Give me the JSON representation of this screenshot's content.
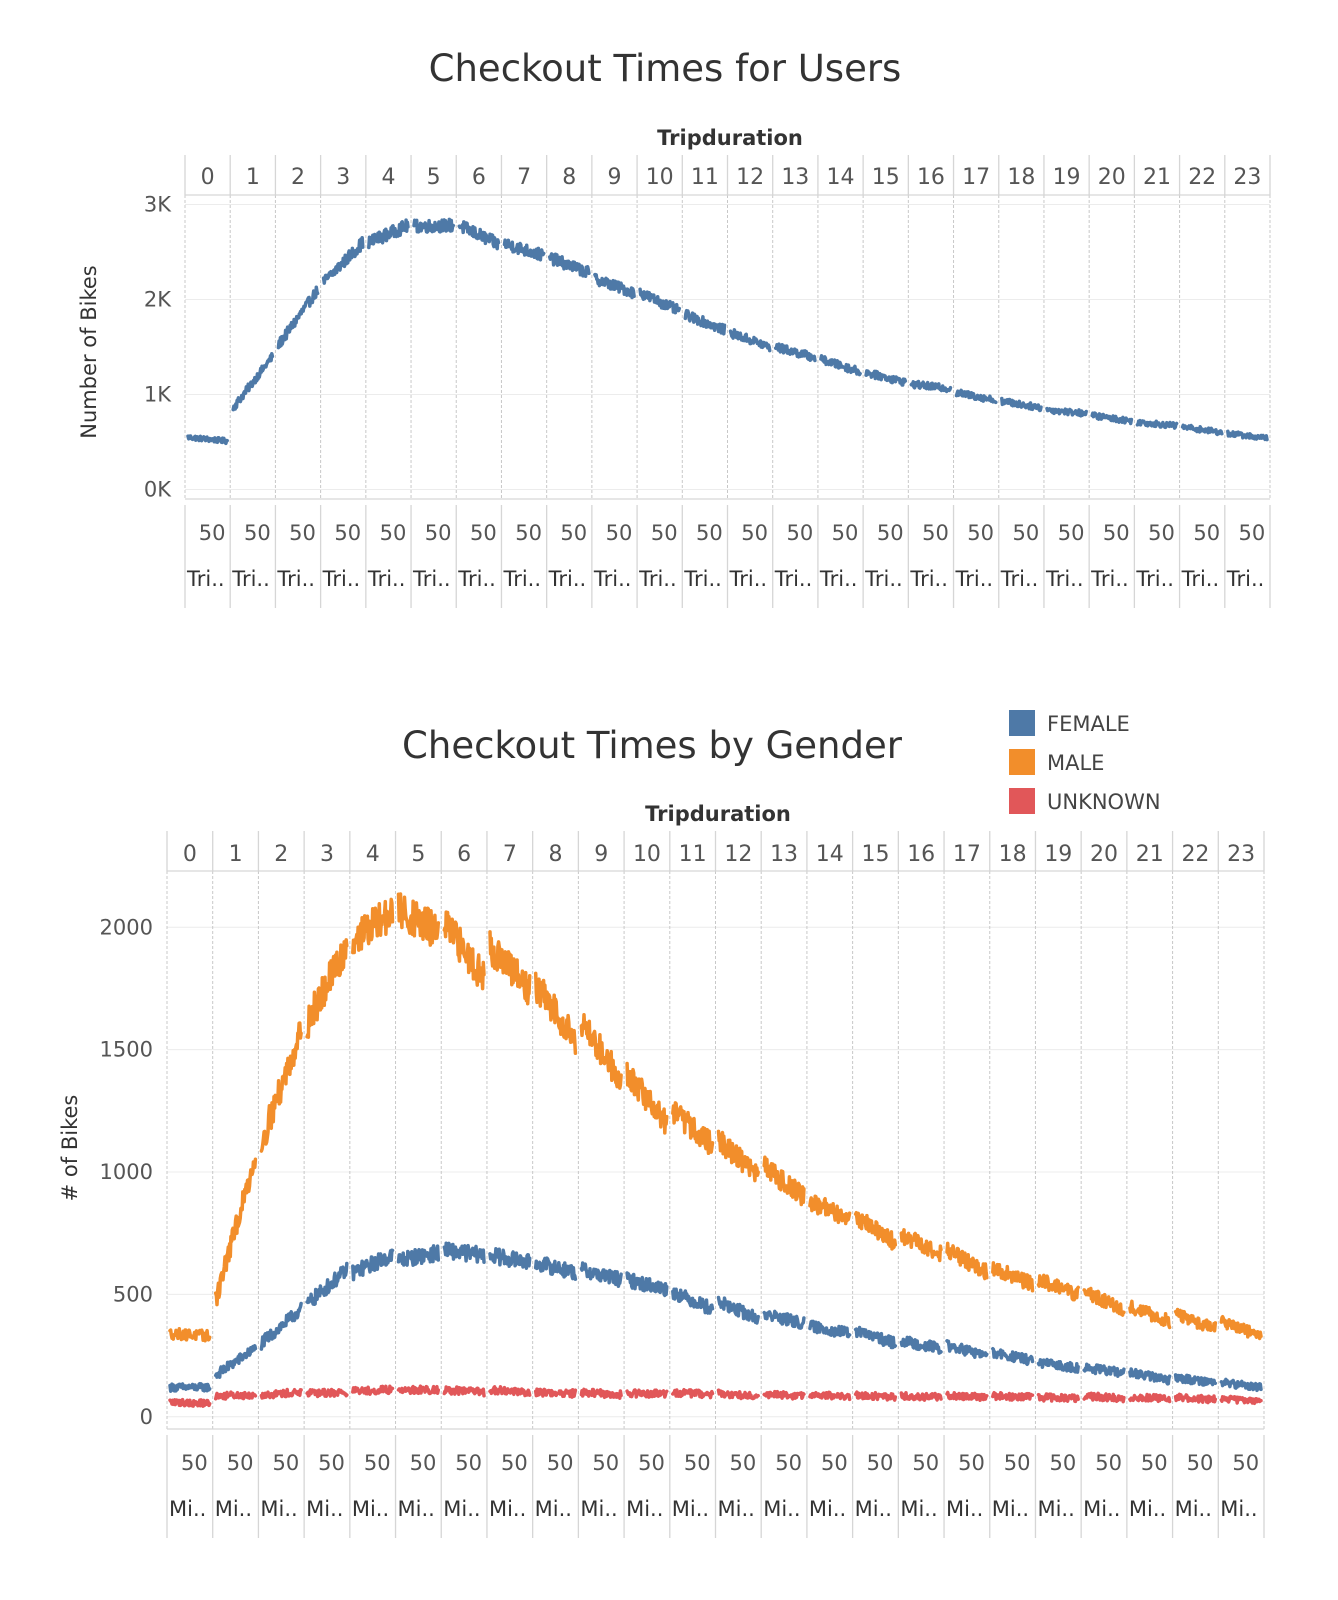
{
  "chart_data": [
    {
      "type": "line",
      "title": "Checkout Times for Users",
      "column_header": "Tripduration",
      "panels": [
        "0",
        "1",
        "2",
        "3",
        "4",
        "5",
        "6",
        "7",
        "8",
        "9",
        "10",
        "11",
        "12",
        "13",
        "14",
        "15",
        "16",
        "17",
        "18",
        "19",
        "20",
        "21",
        "22",
        "23"
      ],
      "panel_axis_tick": "50",
      "panel_axis_label": "Tri..",
      "ylabel": "Number of Bikes",
      "yticks": [
        "0K",
        "1K",
        "2K",
        "3K"
      ],
      "ylim": [
        0,
        3200
      ],
      "grid": true,
      "series": [
        {
          "color": "#4e79a7",
          "panel_values": [
            [
              650,
              610
            ],
            [
              960,
              1500
            ],
            [
              1620,
              2200
            ],
            [
              2280,
              2700
            ],
            [
              2700,
              2880
            ],
            [
              2870,
              2880
            ],
            [
              2880,
              2680
            ],
            [
              2690,
              2560
            ],
            [
              2540,
              2380
            ],
            [
              2320,
              2170
            ],
            [
              2170,
              1980
            ],
            [
              1940,
              1780
            ],
            [
              1750,
              1600
            ],
            [
              1600,
              1490
            ],
            [
              1470,
              1340
            ],
            [
              1330,
              1230
            ],
            [
              1210,
              1160
            ],
            [
              1120,
              1040
            ],
            [
              1030,
              960
            ],
            [
              940,
              900
            ],
            [
              880,
              820
            ],
            [
              810,
              770
            ],
            [
              760,
              700
            ],
            [
              690,
              640
            ]
          ]
        }
      ]
    },
    {
      "type": "line",
      "title": "Checkout Times by Gender",
      "column_header": "Tripduration",
      "panels": [
        "0",
        "1",
        "2",
        "3",
        "4",
        "5",
        "6",
        "7",
        "8",
        "9",
        "10",
        "11",
        "12",
        "13",
        "14",
        "15",
        "16",
        "17",
        "18",
        "19",
        "20",
        "21",
        "22",
        "23"
      ],
      "panel_axis_tick": "50",
      "panel_axis_label": "Mi..",
      "ylabel": "# of Bikes",
      "yticks": [
        "0",
        "500",
        "1000",
        "1500",
        "2000"
      ],
      "ylim": [
        -50,
        2230
      ],
      "grid": true,
      "legend_position": "top-right",
      "series": [
        {
          "name": "FEMALE",
          "color": "#4e79a7",
          "panel_values": [
            [
              120,
              120
            ],
            [
              170,
              280
            ],
            [
              300,
              440
            ],
            [
              460,
              600
            ],
            [
              590,
              660
            ],
            [
              640,
              670
            ],
            [
              680,
              660
            ],
            [
              660,
              630
            ],
            [
              630,
              590
            ],
            [
              600,
              560
            ],
            [
              560,
              520
            ],
            [
              510,
              440
            ],
            [
              470,
              400
            ],
            [
              420,
              380
            ],
            [
              370,
              340
            ],
            [
              350,
              300
            ],
            [
              310,
              280
            ],
            [
              290,
              250
            ],
            [
              260,
              230
            ],
            [
              220,
              200
            ],
            [
              200,
              180
            ],
            [
              180,
              150
            ],
            [
              160,
              140
            ],
            [
              140,
              120
            ]
          ]
        },
        {
          "name": "MALE",
          "color": "#f28e2b",
          "panel_values": [
            [
              340,
              330
            ],
            [
              480,
              1060
            ],
            [
              1120,
              1580
            ],
            [
              1610,
              1920
            ],
            [
              1950,
              2060
            ],
            [
              2070,
              1980
            ],
            [
              2010,
              1800
            ],
            [
              1920,
              1740
            ],
            [
              1760,
              1550
            ],
            [
              1610,
              1380
            ],
            [
              1400,
              1200
            ],
            [
              1250,
              1110
            ],
            [
              1130,
              990
            ],
            [
              1020,
              900
            ],
            [
              880,
              810
            ],
            [
              820,
              710
            ],
            [
              740,
              670
            ],
            [
              680,
              590
            ],
            [
              610,
              540
            ],
            [
              560,
              500
            ],
            [
              510,
              440
            ],
            [
              450,
              390
            ],
            [
              420,
              360
            ],
            [
              390,
              330
            ]
          ]
        },
        {
          "name": "UNKNOWN",
          "color": "#e15759",
          "panel_values": [
            [
              60,
              55
            ],
            [
              85,
              90
            ],
            [
              90,
              100
            ],
            [
              95,
              100
            ],
            [
              105,
              110
            ],
            [
              110,
              110
            ],
            [
              110,
              100
            ],
            [
              110,
              100
            ],
            [
              100,
              95
            ],
            [
              100,
              90
            ],
            [
              95,
              95
            ],
            [
              100,
              90
            ],
            [
              95,
              85
            ],
            [
              90,
              85
            ],
            [
              90,
              80
            ],
            [
              90,
              80
            ],
            [
              85,
              80
            ],
            [
              85,
              80
            ],
            [
              85,
              80
            ],
            [
              80,
              75
            ],
            [
              85,
              75
            ],
            [
              80,
              75
            ],
            [
              80,
              70
            ],
            [
              75,
              60
            ]
          ]
        }
      ]
    }
  ]
}
